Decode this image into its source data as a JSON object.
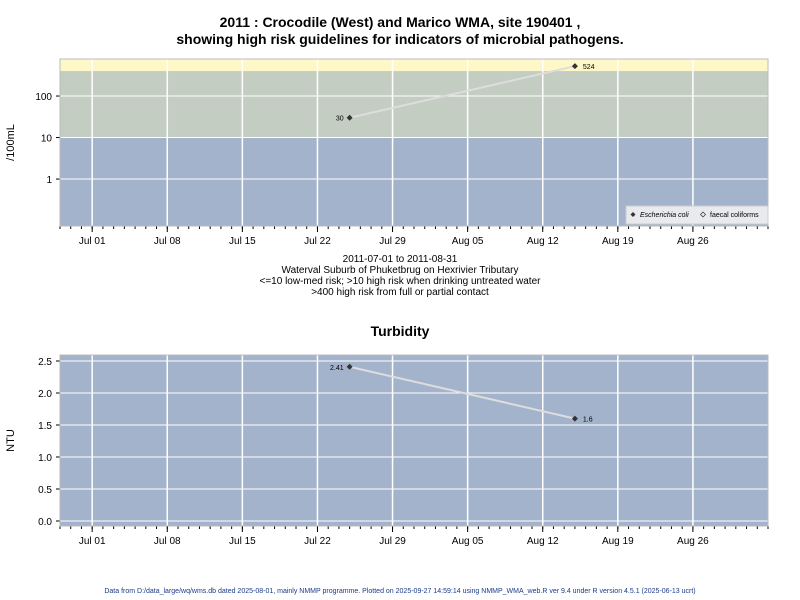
{
  "title_line1": "2011 : Crocodile (West) and Marico WMA, site 190401 ,",
  "title_line2": "showing high risk guidelines for indicators of microbial pathogens.",
  "caption": [
    "2011-07-01 to 2011-08-31",
    "Waterval Suburb of Phuketbrug on Hexrivier Tributary",
    "<=10 low-med risk; >10 high risk when drinking untreated water",
    ">400 high risk from full or partial contact"
  ],
  "footer": "Data from D:/data_large/wq/wms.db dated 2025-08-01, mainly NMMP programme. Plotted on 2025-09-27 14:59:14 using NMMP_WMA_web.R ver 9.4 under R version 4.5.1 (2025-06-13 ucrt)",
  "colors": {
    "low": "#a3b3cb",
    "high": "#c4cdc2",
    "contact": "#fef8c8",
    "line": "#dddddd",
    "point": "#333333"
  },
  "chart_data": [
    {
      "type": "line",
      "title": "",
      "ylabel": "/100mL",
      "yscale": "log",
      "ylim": [
        0.074,
        780
      ],
      "yticks": [
        1,
        10,
        100
      ],
      "ytick_labels": [
        "1",
        "10",
        "100"
      ],
      "xlim": [
        "2011-06-28",
        "2011-09-02"
      ],
      "xticks": [
        "2011-07-01",
        "2011-07-08",
        "2011-07-15",
        "2011-07-22",
        "2011-07-29",
        "2011-08-05",
        "2011-08-12",
        "2011-08-19",
        "2011-08-26"
      ],
      "xtick_labels": [
        "Jul 01",
        "Jul 08",
        "Jul 15",
        "Jul 22",
        "Jul 29",
        "Aug 05",
        "Aug 12",
        "Aug 19",
        "Aug 26"
      ],
      "bands": [
        {
          "from": 0.074,
          "to": 10,
          "color": "#a3b3cb"
        },
        {
          "from": 10,
          "to": 400,
          "color": "#c4cdc2"
        },
        {
          "from": 400,
          "to": 780,
          "color": "#fef8c8"
        }
      ],
      "series": [
        {
          "name": "Escherichia coli",
          "x": [
            "2011-07-25",
            "2011-08-15"
          ],
          "y": [
            30,
            524
          ],
          "labels": [
            "30",
            "524"
          ]
        }
      ],
      "legend": {
        "position": "bottom-right",
        "entries": [
          "Escherichia coli",
          "faecal coliforms"
        ]
      }
    },
    {
      "type": "line",
      "title": "Turbidity",
      "ylabel": "NTU",
      "ylim": [
        -0.078,
        2.594
      ],
      "yticks": [
        0,
        0.5,
        1,
        1.5,
        2,
        2.5
      ],
      "ytick_labels": [
        "0.0",
        "0.5",
        "1.0",
        "1.5",
        "2.0",
        "2.5"
      ],
      "xlim": [
        "2011-06-28",
        "2011-09-02"
      ],
      "xticks": [
        "2011-07-01",
        "2011-07-08",
        "2011-07-15",
        "2011-07-22",
        "2011-07-29",
        "2011-08-05",
        "2011-08-12",
        "2011-08-19",
        "2011-08-26"
      ],
      "xtick_labels": [
        "Jul 01",
        "Jul 08",
        "Jul 15",
        "Jul 22",
        "Jul 29",
        "Aug 05",
        "Aug 12",
        "Aug 19",
        "Aug 26"
      ],
      "series": [
        {
          "x": [
            "2011-07-25",
            "2011-08-15"
          ],
          "y": [
            2.41,
            1.6
          ],
          "labels": [
            "2.41",
            "1.6"
          ]
        }
      ]
    }
  ]
}
